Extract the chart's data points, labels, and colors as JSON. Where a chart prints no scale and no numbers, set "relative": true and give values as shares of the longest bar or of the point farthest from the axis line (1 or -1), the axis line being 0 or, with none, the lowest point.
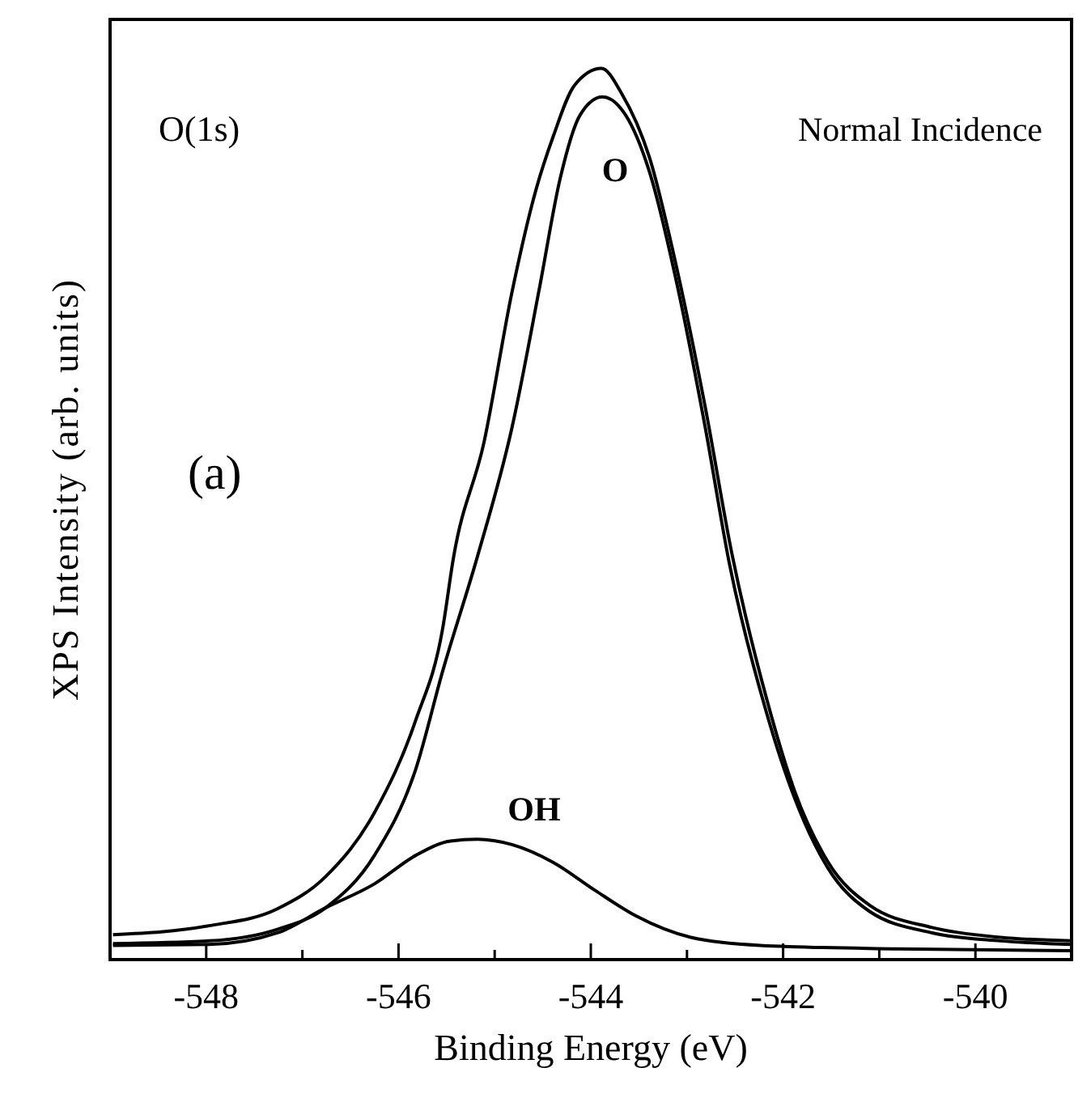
{
  "chart_data": {
    "type": "line",
    "relative": true,
    "xlabel": "Binding Energy (eV)",
    "ylabel": "XPS Intensity (arb. units)",
    "xlim": [
      -549,
      -539
    ],
    "xticks": [
      {
        "value": -549,
        "label": null
      },
      -548,
      {
        "value": -547,
        "label": null
      },
      -546,
      {
        "value": -545,
        "label": null
      },
      -544,
      {
        "value": -543,
        "label": null
      },
      -542,
      {
        "value": -541,
        "label": null
      },
      -540,
      {
        "value": -539,
        "label": null
      }
    ],
    "grid": false,
    "marker": "none",
    "line_style": "solid",
    "annotations": [
      "O(1s)",
      "Normal Incidence",
      "(a)",
      "O",
      "OH"
    ],
    "series": [
      {
        "color": "#000000",
        "x": [
          -548.97,
          -547.97,
          -547.26,
          -546.76,
          -546.25,
          -545.82,
          -545.54,
          -545.43,
          -545.11,
          -544.82,
          -544.57,
          -544.39,
          -544.17,
          -543.89,
          -543.68,
          -543.39,
          -543.1,
          -542.81,
          -542.53,
          -542.17,
          -541.88,
          -541.53,
          -541.1,
          -540.45,
          -539.74,
          -539.0
        ],
        "values": [
          0.028,
          0.038,
          0.057,
          0.093,
          0.165,
          0.269,
          0.372,
          0.45,
          0.581,
          0.749,
          0.864,
          0.924,
          0.981,
          1.0,
          0.972,
          0.9,
          0.773,
          0.62,
          0.454,
          0.292,
          0.189,
          0.109,
          0.061,
          0.036,
          0.025,
          0.021
        ]
      },
      {
        "color": "#000000",
        "x": [
          -548.97,
          -547.97,
          -547.26,
          -546.76,
          -546.25,
          -545.82,
          -545.54,
          -545.18,
          -544.82,
          -544.53,
          -544.32,
          -544.11,
          -543.88,
          -543.64,
          -543.39,
          -543.1,
          -542.81,
          -542.56,
          -542.17,
          -541.88,
          -541.53,
          -541.1,
          -540.45,
          -539.74,
          -539.0
        ],
        "values": [
          0.018,
          0.021,
          0.034,
          0.058,
          0.117,
          0.214,
          0.324,
          0.452,
          0.597,
          0.756,
          0.876,
          0.948,
          0.968,
          0.948,
          0.884,
          0.756,
          0.597,
          0.445,
          0.276,
          0.181,
          0.102,
          0.054,
          0.03,
          0.021,
          0.017
        ]
      },
      {
        "color": "#000000",
        "x": [
          -548.97,
          -547.97,
          -547.26,
          -546.76,
          -546.25,
          -545.82,
          -545.46,
          -545.18,
          -544.82,
          -544.39,
          -543.96,
          -543.53,
          -542.96,
          -542.24,
          -540.81,
          -539.0
        ],
        "values": [
          0.016,
          0.017,
          0.03,
          0.058,
          0.085,
          0.117,
          0.133,
          0.135,
          0.129,
          0.109,
          0.078,
          0.049,
          0.025,
          0.016,
          0.012,
          0.01
        ]
      }
    ]
  }
}
